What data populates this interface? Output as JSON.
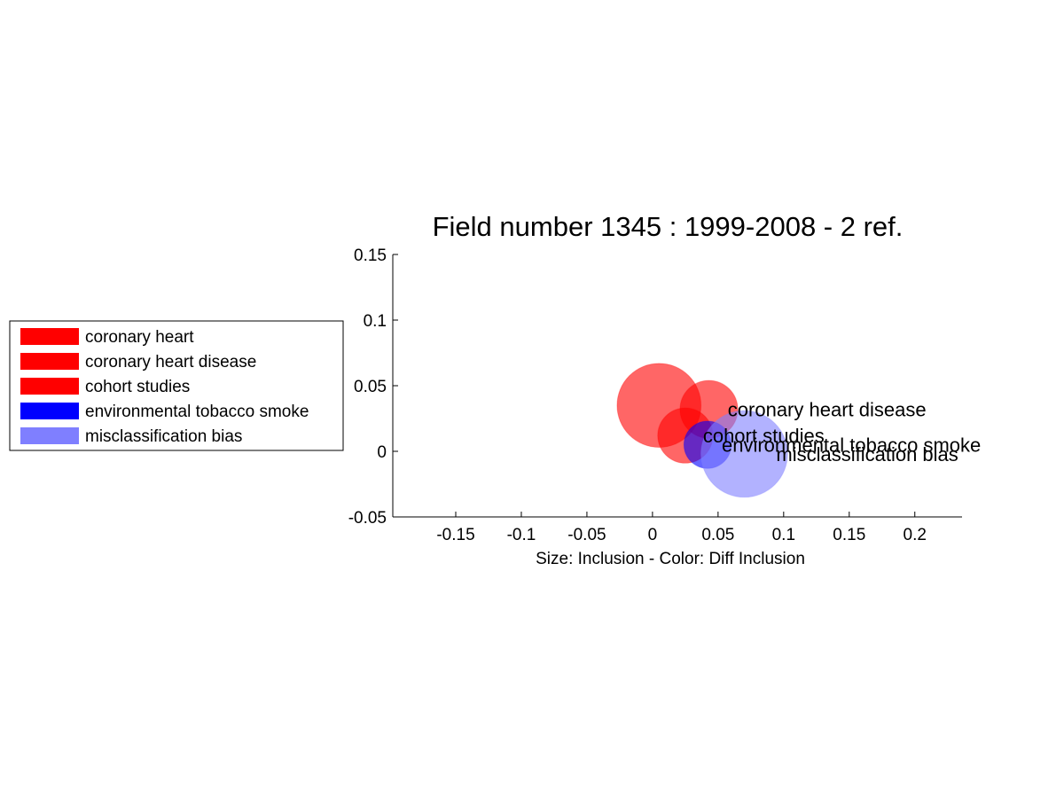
{
  "chart_data": {
    "type": "scatter",
    "title": "Field number 1345 : 1999-2008  - 2 ref.",
    "xlabel": "Size: Inclusion - Color: Diff Inclusion",
    "ylabel": "",
    "xlim": [
      -0.198,
      0.236
    ],
    "ylim": [
      -0.05,
      0.15
    ],
    "xticks": [
      -0.15,
      -0.1,
      -0.05,
      0,
      0.05,
      0.1,
      0.15,
      0.2
    ],
    "xtick_labels": [
      "-0.15",
      "-0.1",
      "-0.05",
      "0",
      "0.05",
      "0.1",
      "0.15",
      "0.2"
    ],
    "yticks": [
      -0.05,
      0,
      0.05,
      0.1,
      0.15
    ],
    "ytick_labels": [
      "-0.05",
      "0",
      "0.05",
      "0.1",
      "0.15"
    ],
    "grid": false,
    "legend_position": "outside-left",
    "series": [
      {
        "name": "coronary heart",
        "x": 0.005,
        "y": 0.035,
        "size": 0.032,
        "color": "#ff0000",
        "label": ""
      },
      {
        "name": "coronary heart disease",
        "x": 0.043,
        "y": 0.032,
        "size": 0.022,
        "color": "#ff0000",
        "label": "coronary heart disease"
      },
      {
        "name": "cohort studies",
        "x": 0.025,
        "y": 0.012,
        "size": 0.021,
        "color": "#ff0000",
        "label": "cohort studies"
      },
      {
        "name": "environmental tobacco smoke",
        "x": 0.042,
        "y": 0.005,
        "size": 0.018,
        "color": "#0000ff",
        "label": "environmental tobacco smoke"
      },
      {
        "name": "misclassification bias",
        "x": 0.07,
        "y": -0.002,
        "size": 0.033,
        "color": "#7f7fff",
        "label": "misclassification bias"
      }
    ]
  }
}
